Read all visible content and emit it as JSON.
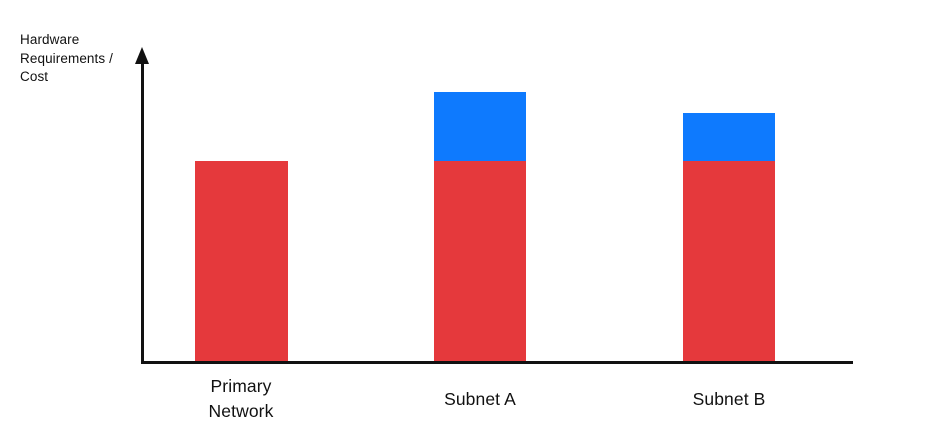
{
  "chart_data": {
    "type": "bar",
    "stacked": true,
    "title": "",
    "xlabel": "",
    "ylabel": "Hardware Requirements / Cost",
    "categories": [
      "Primary Network",
      "Subnet A",
      "Subnet B"
    ],
    "series": [
      {
        "name": "red-base-segment",
        "color": "#E5393C",
        "values": [
          100,
          100,
          100
        ]
      },
      {
        "name": "blue-overhead-segment",
        "color": "#0E7AFE",
        "values": [
          0,
          34,
          24
        ]
      }
    ],
    "value_units": "relative (axis unlabeled, no ticks)",
    "ylim": [
      0,
      155
    ],
    "grid": false,
    "legend": false,
    "axis_color": "#111111",
    "text_color": "#111111"
  }
}
